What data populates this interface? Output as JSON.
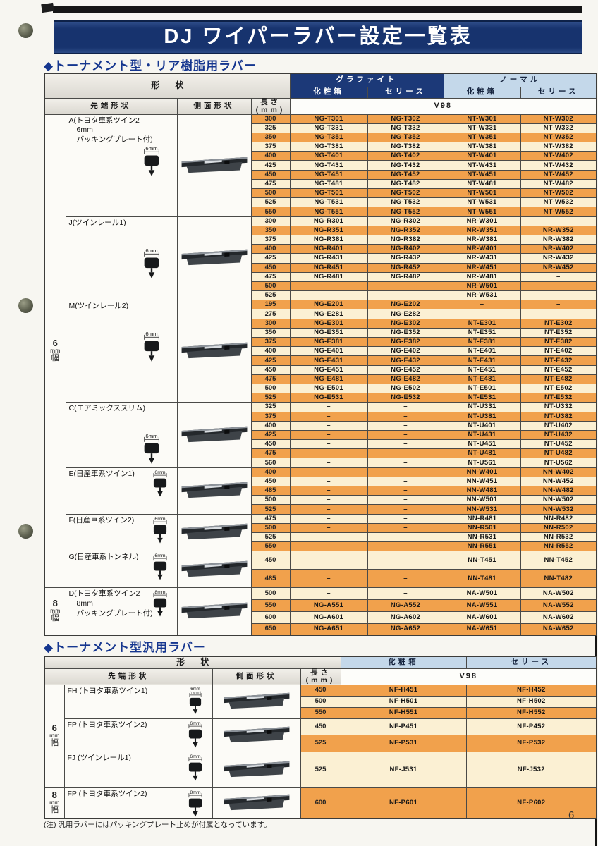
{
  "page": {
    "title": "DJ ワイパーラバー設定一覧表",
    "number": "6"
  },
  "colors": {
    "navy": "#1c3978",
    "lightblue": "#c4d8ea",
    "orange": "#f1a14c",
    "cream": "#fbf0d3"
  },
  "note": "(注) 汎用ラバーにはパッキングプレート止めが付属となっています。",
  "table1": {
    "heading": "◆トーナメント型・リア樹脂用ラバー",
    "headers": {
      "shape": "形状",
      "graphite": "グラファイト",
      "normal": "ノーマル",
      "box": "化粧箱",
      "series": "セリース",
      "tip": "先端形状",
      "side": "側面形状",
      "length": "長さ(mm)",
      "model": "V98"
    },
    "width_groups": [
      {
        "label": "6mm幅",
        "section_ids": [
          "A",
          "J",
          "M",
          "C",
          "E",
          "F",
          "G"
        ]
      },
      {
        "label": "8mm幅",
        "section_ids": [
          "D"
        ]
      }
    ],
    "sections": [
      {
        "id": "A",
        "label_lines": [
          "A(トヨタ車系ツイン2",
          "6mm",
          "パッキングプレート付)"
        ],
        "tip_size": "6mm",
        "tip_sub": "",
        "rows": [
          {
            "len": "300",
            "g_box": "NG-T301",
            "g_series": "NG-T302",
            "n_box": "NT-W301",
            "n_series": "NT-W302"
          },
          {
            "len": "325",
            "g_box": "NG-T331",
            "g_series": "NG-T332",
            "n_box": "NT-W331",
            "n_series": "NT-W332"
          },
          {
            "len": "350",
            "g_box": "NG-T351",
            "g_series": "NG-T352",
            "n_box": "NT-W351",
            "n_series": "NT-W352"
          },
          {
            "len": "375",
            "g_box": "NG-T381",
            "g_series": "NG-T382",
            "n_box": "NT-W381",
            "n_series": "NT-W382"
          },
          {
            "len": "400",
            "g_box": "NG-T401",
            "g_series": "NG-T402",
            "n_box": "NT-W401",
            "n_series": "NT-W402"
          },
          {
            "len": "425",
            "g_box": "NG-T431",
            "g_series": "NG-T432",
            "n_box": "NT-W431",
            "n_series": "NT-W432"
          },
          {
            "len": "450",
            "g_box": "NG-T451",
            "g_series": "NG-T452",
            "n_box": "NT-W451",
            "n_series": "NT-W452"
          },
          {
            "len": "475",
            "g_box": "NG-T481",
            "g_series": "NG-T482",
            "n_box": "NT-W481",
            "n_series": "NT-W482"
          },
          {
            "len": "500",
            "g_box": "NG-T501",
            "g_series": "NG-T502",
            "n_box": "NT-W501",
            "n_series": "NT-W502"
          },
          {
            "len": "525",
            "g_box": "NG-T531",
            "g_series": "NG-T532",
            "n_box": "NT-W531",
            "n_series": "NT-W532"
          },
          {
            "len": "550",
            "g_box": "NG-T551",
            "g_series": "NG-T552",
            "n_box": "NT-W551",
            "n_series": "NT-W552"
          }
        ]
      },
      {
        "id": "J",
        "label_lines": [
          "J(ツインレール1)"
        ],
        "tip_size": "6mm",
        "tip_sub": "",
        "rows": [
          {
            "len": "300",
            "g_box": "NG-R301",
            "g_series": "NG-R302",
            "n_box": "NR-W301",
            "n_series": "–"
          },
          {
            "len": "350",
            "g_box": "NG-R351",
            "g_series": "NG-R352",
            "n_box": "NR-W351",
            "n_series": "NR-W352"
          },
          {
            "len": "375",
            "g_box": "NG-R381",
            "g_series": "NG-R382",
            "n_box": "NR-W381",
            "n_series": "NR-W382"
          },
          {
            "len": "400",
            "g_box": "NG-R401",
            "g_series": "NG-R402",
            "n_box": "NR-W401",
            "n_series": "NR-W402"
          },
          {
            "len": "425",
            "g_box": "NG-R431",
            "g_series": "NG-R432",
            "n_box": "NR-W431",
            "n_series": "NR-W432"
          },
          {
            "len": "450",
            "g_box": "NG-R451",
            "g_series": "NG-R452",
            "n_box": "NR-W451",
            "n_series": "NR-W452"
          },
          {
            "len": "475",
            "g_box": "NG-R481",
            "g_series": "NG-R482",
            "n_box": "NR-W481",
            "n_series": "–"
          },
          {
            "len": "500",
            "g_box": "–",
            "g_series": "–",
            "n_box": "NR-W501",
            "n_series": "–"
          },
          {
            "len": "525",
            "g_box": "–",
            "g_series": "–",
            "n_box": "NR-W531",
            "n_series": "–"
          }
        ]
      },
      {
        "id": "M",
        "label_lines": [
          "M(ツインレール2)"
        ],
        "tip_size": "6mm",
        "tip_sub": "",
        "rows": [
          {
            "len": "195",
            "g_box": "NG-E201",
            "g_series": "NG-E202",
            "n_box": "–",
            "n_series": "–"
          },
          {
            "len": "275",
            "g_box": "NG-E281",
            "g_series": "NG-E282",
            "n_box": "–",
            "n_series": "–"
          },
          {
            "len": "300",
            "g_box": "NG-E301",
            "g_series": "NG-E302",
            "n_box": "NT-E301",
            "n_series": "NT-E302"
          },
          {
            "len": "350",
            "g_box": "NG-E351",
            "g_series": "NG-E352",
            "n_box": "NT-E351",
            "n_series": "NT-E352"
          },
          {
            "len": "375",
            "g_box": "NG-E381",
            "g_series": "NG-E382",
            "n_box": "NT-E381",
            "n_series": "NT-E382"
          },
          {
            "len": "400",
            "g_box": "NG-E401",
            "g_series": "NG-E402",
            "n_box": "NT-E401",
            "n_series": "NT-E402"
          },
          {
            "len": "425",
            "g_box": "NG-E431",
            "g_series": "NG-E432",
            "n_box": "NT-E431",
            "n_series": "NT-E432"
          },
          {
            "len": "450",
            "g_box": "NG-E451",
            "g_series": "NG-E452",
            "n_box": "NT-E451",
            "n_series": "NT-E452"
          },
          {
            "len": "475",
            "g_box": "NG-E481",
            "g_series": "NG-E482",
            "n_box": "NT-E481",
            "n_series": "NT-E482"
          },
          {
            "len": "500",
            "g_box": "NG-E501",
            "g_series": "NG-E502",
            "n_box": "NT-E501",
            "n_series": "NT-E502"
          },
          {
            "len": "525",
            "g_box": "NG-E531",
            "g_series": "NG-E532",
            "n_box": "NT-E531",
            "n_series": "NT-E532"
          }
        ]
      },
      {
        "id": "C",
        "label_lines": [
          "C(エアミックススリム)"
        ],
        "tip_size": "6mm",
        "tip_sub": "",
        "rows": [
          {
            "len": "325",
            "g_box": "–",
            "g_series": "–",
            "n_box": "NT-U331",
            "n_series": "NT-U332"
          },
          {
            "len": "375",
            "g_box": "–",
            "g_series": "–",
            "n_box": "NT-U381",
            "n_series": "NT-U382"
          },
          {
            "len": "400",
            "g_box": "–",
            "g_series": "–",
            "n_box": "NT-U401",
            "n_series": "NT-U402"
          },
          {
            "len": "425",
            "g_box": "–",
            "g_series": "–",
            "n_box": "NT-U431",
            "n_series": "NT-U432"
          },
          {
            "len": "450",
            "g_box": "–",
            "g_series": "–",
            "n_box": "NT-U451",
            "n_series": "NT-U452"
          },
          {
            "len": "475",
            "g_box": "–",
            "g_series": "–",
            "n_box": "NT-U481",
            "n_series": "NT-U482"
          },
          {
            "len": "560",
            "g_box": "–",
            "g_series": "–",
            "n_box": "NT-U561",
            "n_series": "NT-U562"
          }
        ]
      },
      {
        "id": "E",
        "label_lines": [
          "E(日産車系ツイン1)"
        ],
        "tip_size": "6mm",
        "tip_sub": "",
        "rows": [
          {
            "len": "400",
            "g_box": "–",
            "g_series": "–",
            "n_box": "NN-W401",
            "n_series": "NN-W402"
          },
          {
            "len": "450",
            "g_box": "–",
            "g_series": "–",
            "n_box": "NN-W451",
            "n_series": "NN-W452"
          },
          {
            "len": "485",
            "g_box": "–",
            "g_series": "–",
            "n_box": "NN-W481",
            "n_series": "NN-W482"
          },
          {
            "len": "500",
            "g_box": "–",
            "g_series": "–",
            "n_box": "NN-W501",
            "n_series": "NN-W502"
          },
          {
            "len": "525",
            "g_box": "–",
            "g_series": "–",
            "n_box": "NN-W531",
            "n_series": "NN-W532"
          }
        ]
      },
      {
        "id": "F",
        "label_lines": [
          "F(日産車系ツイン2)"
        ],
        "tip_size": "6mm",
        "tip_sub": "",
        "rows": [
          {
            "len": "475",
            "g_box": "–",
            "g_series": "–",
            "n_box": "NN-R481",
            "n_series": "NN-R482"
          },
          {
            "len": "500",
            "g_box": "–",
            "g_series": "–",
            "n_box": "NN-R501",
            "n_series": "NN-R502"
          },
          {
            "len": "525",
            "g_box": "–",
            "g_series": "–",
            "n_box": "NN-R531",
            "n_series": "NN-R532"
          },
          {
            "len": "550",
            "g_box": "–",
            "g_series": "–",
            "n_box": "NN-R551",
            "n_series": "NN-R552"
          }
        ]
      },
      {
        "id": "G",
        "label_lines": [
          "G(日産車系トンネル)"
        ],
        "tip_size": "6mm",
        "tip_sub": "",
        "rows": [
          {
            "len": "450",
            "g_box": "–",
            "g_series": "–",
            "n_box": "NN-T451",
            "n_series": "NN-T452"
          },
          {
            "len": "485",
            "g_box": "–",
            "g_series": "–",
            "n_box": "NN-T481",
            "n_series": "NN-T482"
          }
        ]
      },
      {
        "id": "D",
        "label_lines": [
          "D(トヨタ車系ツイン2",
          "8mm",
          "パッキングプレート付)"
        ],
        "tip_size": "8mm",
        "tip_sub": "",
        "rows": [
          {
            "len": "500",
            "g_box": "–",
            "g_series": "–",
            "n_box": "NA-W501",
            "n_series": "NA-W502"
          },
          {
            "len": "550",
            "g_box": "NG-A551",
            "g_series": "NG-A552",
            "n_box": "NA-W551",
            "n_series": "NA-W552"
          },
          {
            "len": "600",
            "g_box": "NG-A601",
            "g_series": "NG-A602",
            "n_box": "NA-W601",
            "n_series": "NA-W602"
          },
          {
            "len": "650",
            "g_box": "NG-A651",
            "g_series": "NG-A652",
            "n_box": "NA-W651",
            "n_series": "NA-W652"
          }
        ]
      }
    ]
  },
  "table2": {
    "heading": "◆トーナメント型汎用ラバー",
    "headers": {
      "shape": "形状",
      "box": "化粧箱",
      "series": "セリース",
      "tip": "先端形状",
      "side": "側面形状",
      "length": "長さ(mm)",
      "model": "V98"
    },
    "width_groups": [
      {
        "label": "6mm幅",
        "section_ids": [
          "FH",
          "FP6",
          "FJ"
        ]
      },
      {
        "label": "8mm幅",
        "section_ids": [
          "FP8"
        ]
      }
    ],
    "sections": [
      {
        "id": "FH",
        "label_lines": [
          "FH (トヨタ車系ツイン1)"
        ],
        "tip_size": "6mm",
        "tip_sub": "(7.6mm)",
        "rows": [
          {
            "len": "450",
            "box": "NF-H451",
            "series": "NF-H452"
          },
          {
            "len": "500",
            "box": "NF-H501",
            "series": "NF-H502"
          },
          {
            "len": "550",
            "box": "NF-H551",
            "series": "NF-H552"
          }
        ]
      },
      {
        "id": "FP6",
        "label_lines": [
          "FP (トヨタ車系ツイン2)"
        ],
        "tip_size": "6mm",
        "tip_sub": "",
        "rows": [
          {
            "len": "450",
            "box": "NF-P451",
            "series": "NF-P452"
          },
          {
            "len": "525",
            "box": "NF-P531",
            "series": "NF-P532"
          }
        ]
      },
      {
        "id": "FJ",
        "label_lines": [
          "FJ (ツインレール1)"
        ],
        "tip_size": "6mm",
        "tip_sub": "",
        "rows": [
          {
            "len": "525",
            "box": "NF-J531",
            "series": "NF-J532"
          }
        ]
      },
      {
        "id": "FP8",
        "label_lines": [
          "FP (トヨタ車系ツイン2)"
        ],
        "tip_size": "8mm",
        "tip_sub": "",
        "rows": [
          {
            "len": "600",
            "box": "NF-P601",
            "series": "NF-P602"
          }
        ]
      }
    ]
  }
}
